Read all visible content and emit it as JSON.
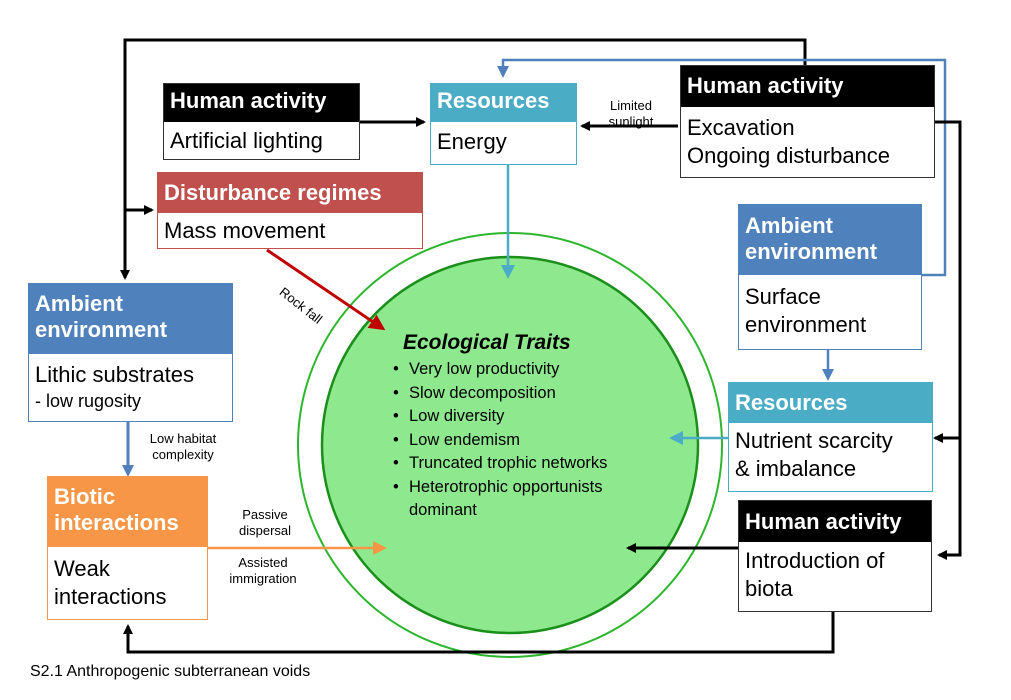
{
  "caption": "S2.1 Anthropogenic subterranean voids",
  "central": {
    "title": "Ecological Traits",
    "traits": [
      "Very low productivity",
      "Slow decomposition",
      "Low diversity",
      "Low endemism",
      "Truncated trophic networks",
      "Heterotrophic opportunists dominant"
    ]
  },
  "boxes": {
    "human_lighting": {
      "header": "Human activity",
      "body": "Artificial lighting"
    },
    "resources_energy": {
      "header": "Resources",
      "body": "Energy"
    },
    "human_excavation": {
      "header": "Human activity",
      "body": [
        "Excavation",
        "Ongoing disturbance"
      ]
    },
    "disturbance": {
      "header": "Disturbance regimes",
      "body": "Mass movement"
    },
    "ambient_surface": {
      "header": [
        "Ambient",
        "environment"
      ],
      "body": [
        "Surface",
        "environment"
      ]
    },
    "ambient_lithic": {
      "header": [
        "Ambient",
        "environment"
      ],
      "body": [
        "Lithic substrates",
        "- low rugosity"
      ]
    },
    "resources_nutrient": {
      "header": "Resources",
      "body": [
        "Nutrient scarcity",
        "& imbalance"
      ]
    },
    "biotic": {
      "header": [
        "Biotic",
        "interactions"
      ],
      "body": [
        "Weak",
        "interactions"
      ]
    },
    "human_biota": {
      "header": "Human activity",
      "body": [
        "Introduction of",
        "biota"
      ]
    }
  },
  "labels": {
    "limited_sunlight": [
      "Limited",
      "sunlight"
    ],
    "rock_fall": "Rock fall",
    "low_habitat": [
      "Low habitat",
      "complexity"
    ],
    "passive_dispersal": [
      "Passive",
      "dispersal"
    ],
    "assisted_immigration": [
      "Assisted",
      "immigration"
    ]
  },
  "colors": {
    "human_header": "#000000",
    "resources_header": "#4bacc6",
    "disturbance_header": "#c0504d",
    "ambient_header": "#4f81bd",
    "biotic_header": "#f79646",
    "circle_fill": "#8ee88e",
    "circle_ring": "#2db52d",
    "arrow_black": "#000000",
    "arrow_blue": "#4f81bd",
    "arrow_cyan": "#4bacc6",
    "arrow_red": "#c00000",
    "arrow_orange": "#f79646"
  }
}
